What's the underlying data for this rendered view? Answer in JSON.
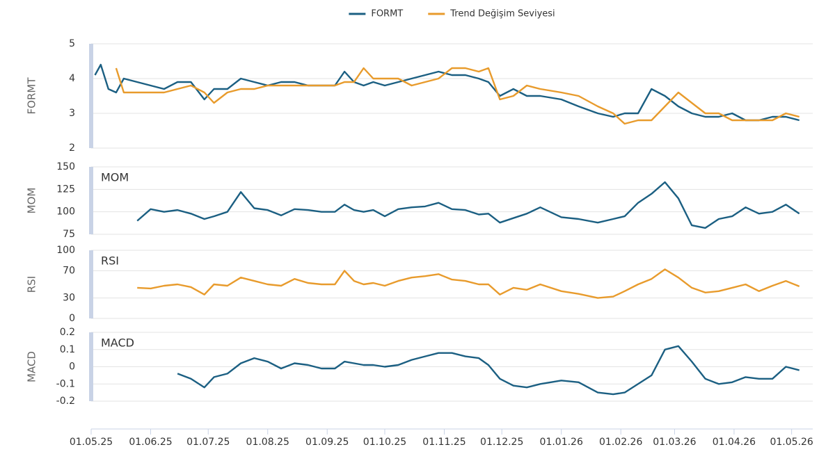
{
  "chart_data": [
    {
      "type": "line",
      "y_label": "FORMT",
      "legend": "top",
      "x": [
        "2025-05-03",
        "2025-05-06",
        "2025-05-10",
        "2025-05-14",
        "2025-05-18",
        "2025-05-25",
        "2025-06-01",
        "2025-06-08",
        "2025-06-15",
        "2025-06-22",
        "2025-06-29",
        "2025-07-04",
        "2025-07-11",
        "2025-07-18",
        "2025-07-25",
        "2025-08-01",
        "2025-08-08",
        "2025-08-15",
        "2025-08-22",
        "2025-08-29",
        "2025-09-05",
        "2025-09-10",
        "2025-09-15",
        "2025-09-20",
        "2025-09-25",
        "2025-10-01",
        "2025-10-08",
        "2025-10-15",
        "2025-10-22",
        "2025-10-29",
        "2025-11-05",
        "2025-11-12",
        "2025-11-19",
        "2025-11-24",
        "2025-11-30",
        "2025-12-07",
        "2025-12-14",
        "2025-12-21",
        "2026-01-01",
        "2026-01-10",
        "2026-01-20",
        "2026-01-28",
        "2026-02-03",
        "2026-02-10",
        "2026-02-17",
        "2026-02-24",
        "2026-03-03",
        "2026-03-10",
        "2026-03-17",
        "2026-03-24",
        "2026-03-31",
        "2026-04-07",
        "2026-04-14",
        "2026-04-21",
        "2026-04-28",
        "2026-05-05"
      ],
      "xlim": [
        "2025-05-01",
        "2026-05-12"
      ],
      "ylim": [
        2,
        5
      ],
      "yticks": [
        2,
        3,
        4,
        5
      ],
      "grid": true,
      "series": [
        {
          "name": "FORMT",
          "color": "#1b5f82",
          "values": [
            4.1,
            4.4,
            3.7,
            3.6,
            4.0,
            3.9,
            3.8,
            3.7,
            3.9,
            3.9,
            3.4,
            3.7,
            3.7,
            4.0,
            3.9,
            3.8,
            3.9,
            3.9,
            3.8,
            3.8,
            3.8,
            4.2,
            3.9,
            3.8,
            3.9,
            3.8,
            3.9,
            4.0,
            4.1,
            4.2,
            4.1,
            4.1,
            4.0,
            3.9,
            3.5,
            3.7,
            3.5,
            3.5,
            3.4,
            3.2,
            3.0,
            2.9,
            3.0,
            3.0,
            3.7,
            3.5,
            3.2,
            3.0,
            2.9,
            2.9,
            3.0,
            2.8,
            2.8,
            2.9,
            2.9,
            2.8
          ]
        },
        {
          "name": "Trend Değişim Seviyesi",
          "color": "#e89b2c",
          "values": [
            null,
            null,
            null,
            4.3,
            3.6,
            3.6,
            3.6,
            3.6,
            3.7,
            3.8,
            3.6,
            3.3,
            3.6,
            3.7,
            3.7,
            3.8,
            3.8,
            3.8,
            3.8,
            3.8,
            3.8,
            3.9,
            3.9,
            4.3,
            4.0,
            4.0,
            4.0,
            3.8,
            3.9,
            4.0,
            4.3,
            4.3,
            4.2,
            4.3,
            3.4,
            3.5,
            3.8,
            3.7,
            3.6,
            3.5,
            3.2,
            3.0,
            2.7,
            2.8,
            2.8,
            3.2,
            3.6,
            3.3,
            3.0,
            3.0,
            2.8,
            2.8,
            2.8,
            2.8,
            3.0,
            2.9
          ]
        }
      ]
    },
    {
      "type": "line",
      "y_label": "MOM",
      "x": [
        "2025-05-03",
        "2025-05-06",
        "2025-05-10",
        "2025-05-14",
        "2025-05-18",
        "2025-05-25",
        "2025-06-01",
        "2025-06-08",
        "2025-06-15",
        "2025-06-22",
        "2025-06-29",
        "2025-07-04",
        "2025-07-11",
        "2025-07-18",
        "2025-07-25",
        "2025-08-01",
        "2025-08-08",
        "2025-08-15",
        "2025-08-22",
        "2025-08-29",
        "2025-09-05",
        "2025-09-10",
        "2025-09-15",
        "2025-09-20",
        "2025-09-25",
        "2025-10-01",
        "2025-10-08",
        "2025-10-15",
        "2025-10-22",
        "2025-10-29",
        "2025-11-05",
        "2025-11-12",
        "2025-11-19",
        "2025-11-24",
        "2025-11-30",
        "2025-12-07",
        "2025-12-14",
        "2025-12-21",
        "2026-01-01",
        "2026-01-10",
        "2026-01-20",
        "2026-01-28",
        "2026-02-03",
        "2026-02-10",
        "2026-02-17",
        "2026-02-24",
        "2026-03-03",
        "2026-03-10",
        "2026-03-17",
        "2026-03-24",
        "2026-03-31",
        "2026-04-07",
        "2026-04-14",
        "2026-04-21",
        "2026-04-28",
        "2026-05-05"
      ],
      "xlim": [
        "2025-05-01",
        "2026-05-12"
      ],
      "ylim": [
        75,
        150
      ],
      "yticks": [
        75,
        100,
        125,
        150
      ],
      "grid": true,
      "series": [
        {
          "name": "MOM",
          "color": "#1b5f82",
          "values": [
            null,
            null,
            null,
            null,
            null,
            90,
            103,
            100,
            102,
            98,
            92,
            95,
            100,
            122,
            104,
            102,
            96,
            103,
            102,
            100,
            100,
            108,
            102,
            100,
            102,
            95,
            103,
            105,
            106,
            110,
            103,
            102,
            97,
            98,
            88,
            93,
            98,
            105,
            94,
            92,
            88,
            92,
            95,
            110,
            120,
            133,
            115,
            85,
            82,
            92,
            95,
            105,
            98,
            100,
            108,
            98
          ]
        }
      ]
    },
    {
      "type": "line",
      "y_label": "RSI",
      "x": [
        "2025-05-03",
        "2025-05-06",
        "2025-05-10",
        "2025-05-14",
        "2025-05-18",
        "2025-05-25",
        "2025-06-01",
        "2025-06-08",
        "2025-06-15",
        "2025-06-22",
        "2025-06-29",
        "2025-07-04",
        "2025-07-11",
        "2025-07-18",
        "2025-07-25",
        "2025-08-01",
        "2025-08-08",
        "2025-08-15",
        "2025-08-22",
        "2025-08-29",
        "2025-09-05",
        "2025-09-10",
        "2025-09-15",
        "2025-09-20",
        "2025-09-25",
        "2025-10-01",
        "2025-10-08",
        "2025-10-15",
        "2025-10-22",
        "2025-10-29",
        "2025-11-05",
        "2025-11-12",
        "2025-11-19",
        "2025-11-24",
        "2025-11-30",
        "2025-12-07",
        "2025-12-14",
        "2025-12-21",
        "2026-01-01",
        "2026-01-10",
        "2026-01-20",
        "2026-01-28",
        "2026-02-03",
        "2026-02-10",
        "2026-02-17",
        "2026-02-24",
        "2026-03-03",
        "2026-03-10",
        "2026-03-17",
        "2026-03-24",
        "2026-03-31",
        "2026-04-07",
        "2026-04-14",
        "2026-04-21",
        "2026-04-28",
        "2026-05-05"
      ],
      "xlim": [
        "2025-05-01",
        "2026-05-12"
      ],
      "ylim": [
        0,
        100
      ],
      "yticks": [
        0,
        30,
        70,
        100
      ],
      "grid": true,
      "series": [
        {
          "name": "RSI",
          "color": "#e89b2c",
          "values": [
            null,
            null,
            null,
            null,
            null,
            45,
            44,
            48,
            50,
            46,
            35,
            50,
            48,
            60,
            55,
            50,
            48,
            58,
            52,
            50,
            50,
            70,
            55,
            50,
            52,
            48,
            55,
            60,
            62,
            65,
            57,
            55,
            50,
            50,
            35,
            45,
            42,
            50,
            40,
            36,
            30,
            32,
            40,
            50,
            58,
            72,
            60,
            45,
            38,
            40,
            45,
            50,
            40,
            48,
            55,
            47
          ]
        }
      ]
    },
    {
      "type": "line",
      "y_label": "MACD",
      "x": [
        "2025-05-03",
        "2025-05-06",
        "2025-05-10",
        "2025-05-14",
        "2025-05-18",
        "2025-05-25",
        "2025-06-01",
        "2025-06-08",
        "2025-06-15",
        "2025-06-22",
        "2025-06-29",
        "2025-07-04",
        "2025-07-11",
        "2025-07-18",
        "2025-07-25",
        "2025-08-01",
        "2025-08-08",
        "2025-08-15",
        "2025-08-22",
        "2025-08-29",
        "2025-09-05",
        "2025-09-10",
        "2025-09-15",
        "2025-09-20",
        "2025-09-25",
        "2025-10-01",
        "2025-10-08",
        "2025-10-15",
        "2025-10-22",
        "2025-10-29",
        "2025-11-05",
        "2025-11-12",
        "2025-11-19",
        "2025-11-24",
        "2025-11-30",
        "2025-12-07",
        "2025-12-14",
        "2025-12-21",
        "2026-01-01",
        "2026-01-10",
        "2026-01-20",
        "2026-01-28",
        "2026-02-03",
        "2026-02-10",
        "2026-02-17",
        "2026-02-24",
        "2026-03-03",
        "2026-03-10",
        "2026-03-17",
        "2026-03-24",
        "2026-03-31",
        "2026-04-07",
        "2026-04-14",
        "2026-04-21",
        "2026-04-28",
        "2026-05-05"
      ],
      "xlim": [
        "2025-05-01",
        "2026-05-12"
      ],
      "ylim": [
        -0.2,
        0.2
      ],
      "yticks": [
        -0.2,
        -0.1,
        0,
        0.1,
        0.2
      ],
      "grid": true,
      "xticks": [
        {
          "value": "2025-05-01",
          "label": "01.05.25"
        },
        {
          "value": "2025-06-01",
          "label": "01.06.25"
        },
        {
          "value": "2025-07-01",
          "label": "01.07.25"
        },
        {
          "value": "2025-08-01",
          "label": "01.08.25"
        },
        {
          "value": "2025-09-01",
          "label": "01.09.25"
        },
        {
          "value": "2025-10-01",
          "label": "01.10.25"
        },
        {
          "value": "2025-11-01",
          "label": "01.11.25"
        },
        {
          "value": "2025-12-01",
          "label": "01.12.25"
        },
        {
          "value": "2026-01-01",
          "label": "01.01.26"
        },
        {
          "value": "2026-02-01",
          "label": "01.02.26"
        },
        {
          "value": "2026-03-01",
          "label": "01.03.26"
        },
        {
          "value": "2026-04-01",
          "label": "01.04.26"
        },
        {
          "value": "2026-05-01",
          "label": "01.05.26"
        }
      ],
      "series": [
        {
          "name": "MACD",
          "color": "#1b5f82",
          "values": [
            null,
            null,
            null,
            null,
            null,
            null,
            null,
            null,
            -0.04,
            -0.07,
            -0.12,
            -0.06,
            -0.04,
            0.02,
            0.05,
            0.03,
            -0.01,
            0.02,
            0.01,
            -0.01,
            -0.01,
            0.03,
            0.02,
            0.01,
            0.01,
            0.0,
            0.01,
            0.04,
            0.06,
            0.08,
            0.08,
            0.06,
            0.05,
            0.01,
            -0.07,
            -0.11,
            -0.12,
            -0.1,
            -0.08,
            -0.09,
            -0.15,
            -0.16,
            -0.15,
            -0.1,
            -0.05,
            0.1,
            0.12,
            0.03,
            -0.07,
            -0.1,
            -0.09,
            -0.06,
            -0.07,
            -0.07,
            0.0,
            -0.02
          ]
        }
      ]
    }
  ]
}
